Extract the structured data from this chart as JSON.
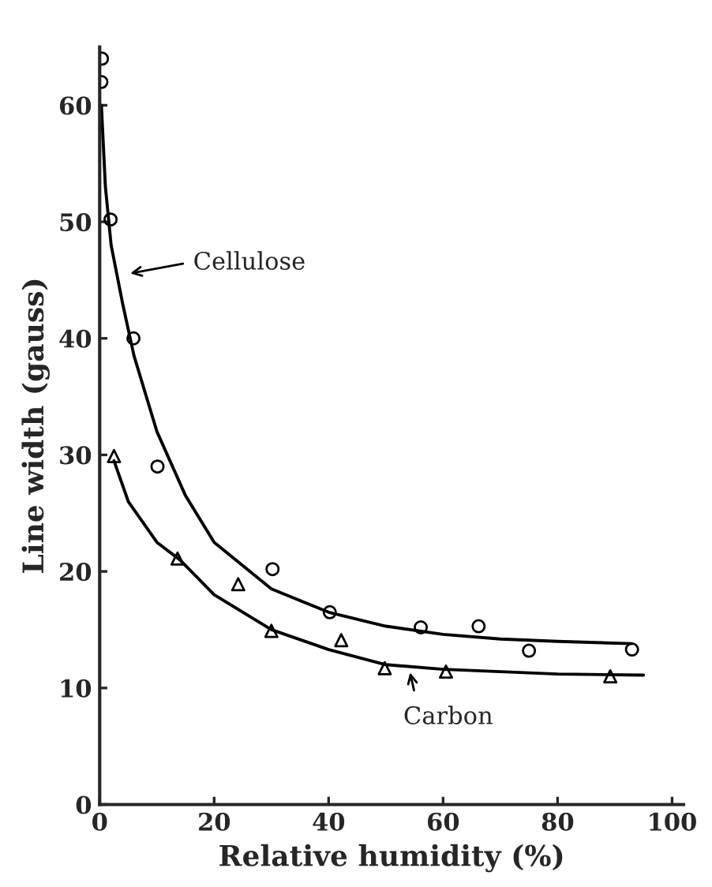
{
  "chart_data": {
    "type": "scatter",
    "xlabel": "Relative humidity (%)",
    "ylabel": "Line width (gauss)",
    "xlim": [
      0,
      102
    ],
    "ylim": [
      0,
      65
    ],
    "xticks": [
      0,
      20,
      40,
      60,
      80,
      100
    ],
    "yticks": [
      0,
      10,
      20,
      30,
      40,
      50,
      60
    ],
    "grid": false,
    "series": [
      {
        "marker": "circle",
        "color": "#000000",
        "x": [
          0.4,
          0.3,
          1.9,
          5.9,
          10.1,
          30.2,
          40.2,
          56.1,
          66.2,
          75,
          93
        ],
        "values": [
          64,
          62,
          50.2,
          40,
          29,
          20.2,
          16.5,
          15.2,
          15.3,
          13.2,
          13.3
        ]
      },
      {
        "marker": "triangle",
        "color": "#000000",
        "x": [
          2.5,
          13.6,
          24.2,
          30,
          42.2,
          49.8,
          60.5,
          89.2
        ],
        "values": [
          29.9,
          21.1,
          18.9,
          14.9,
          14.1,
          11.7,
          11.4,
          11
        ]
      },
      {
        "type": "line",
        "color": "#000000",
        "x": [
          0.3,
          1,
          2,
          4,
          6,
          10,
          15,
          20,
          30,
          40,
          50,
          60,
          70,
          80,
          93
        ],
        "values": [
          60,
          53,
          48,
          43,
          38.5,
          32,
          26.5,
          22.5,
          18.5,
          16.5,
          15.3,
          14.6,
          14.2,
          14,
          13.8
        ]
      },
      {
        "type": "line",
        "color": "#000000",
        "x": [
          2.5,
          5,
          10,
          14,
          20,
          30,
          40,
          50,
          60,
          70,
          80,
          95
        ],
        "values": [
          29.5,
          26,
          22.5,
          21,
          18,
          15,
          13.3,
          12,
          11.6,
          11.4,
          11.2,
          11.1
        ]
      }
    ],
    "annotations": [
      "Cellulose",
      "Carbon"
    ]
  }
}
